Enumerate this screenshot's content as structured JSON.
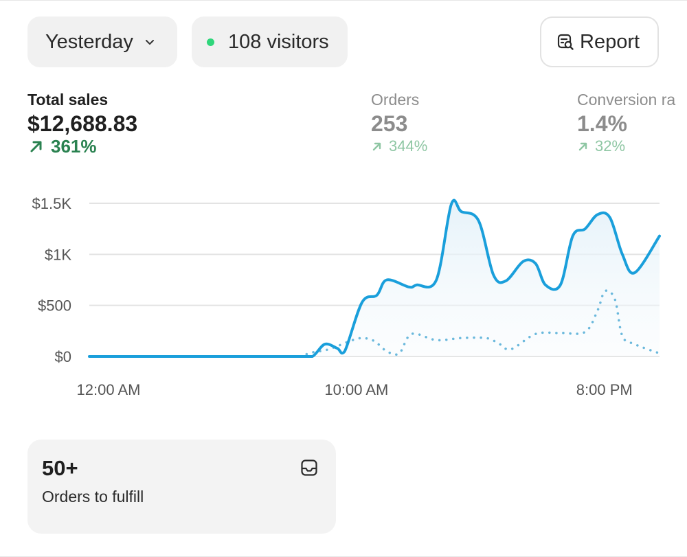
{
  "filters": {
    "date_label": "Yesterday",
    "visitors_label": "108 visitors",
    "status_color": "#2fd67b"
  },
  "report_button": {
    "label": "Report",
    "icon": "report-search-icon"
  },
  "metrics": [
    {
      "label": "Total sales",
      "value": "$12,688.83",
      "delta": "361%",
      "trend": "up",
      "active": true
    },
    {
      "label": "Orders",
      "value": "253",
      "delta": "344%",
      "trend": "up",
      "active": false
    },
    {
      "label": "Conversion ra",
      "value": "1.4%",
      "delta": "32%",
      "trend": "up",
      "active": false
    }
  ],
  "chart_data": {
    "type": "line",
    "ylim": [
      0,
      1500
    ],
    "yticks": [
      "$0",
      "$500",
      "$1K",
      "$1.5K"
    ],
    "ytick_values": [
      0,
      500,
      1000,
      1500
    ],
    "xticks": [
      "12:00 AM",
      "10:00 AM",
      "8:00 PM"
    ],
    "xtick_hours": [
      0,
      10,
      20
    ],
    "xlim": [
      0,
      23
    ],
    "series": [
      {
        "style": "solid",
        "color": "#1a9fdb",
        "x": [
          0,
          8,
          8.5,
          9,
          9.5,
          10,
          10.3,
          11,
          11.6,
          12,
          12.9,
          13.2,
          14,
          14.6,
          15,
          15.7,
          16.3,
          16.8,
          17.5,
          18,
          18.4,
          19,
          19.5,
          20,
          20.5,
          21,
          21.5,
          22,
          23
        ],
        "values": [
          0,
          0,
          0,
          0,
          120,
          80,
          50,
          530,
          600,
          750,
          680,
          700,
          750,
          1490,
          1420,
          1330,
          800,
          740,
          930,
          910,
          700,
          700,
          1180,
          1250,
          1390,
          1360,
          1000,
          820,
          1180
        ]
      },
      {
        "style": "dotted",
        "color": "#6ab8dc",
        "x": [
          8.5,
          9,
          9.5,
          10,
          10.5,
          11,
          11.5,
          12,
          12.5,
          13,
          14,
          15,
          16,
          16.5,
          17,
          18,
          19,
          20,
          20.5,
          20.8,
          21.2,
          21.5,
          22,
          23
        ],
        "values": [
          0,
          40,
          60,
          100,
          150,
          180,
          150,
          50,
          30,
          220,
          160,
          180,
          180,
          130,
          70,
          220,
          230,
          240,
          450,
          640,
          560,
          200,
          120,
          30
        ]
      }
    ]
  },
  "fulfill_card": {
    "count": "50+",
    "label": "Orders to fulfill",
    "icon": "inbox-icon"
  }
}
